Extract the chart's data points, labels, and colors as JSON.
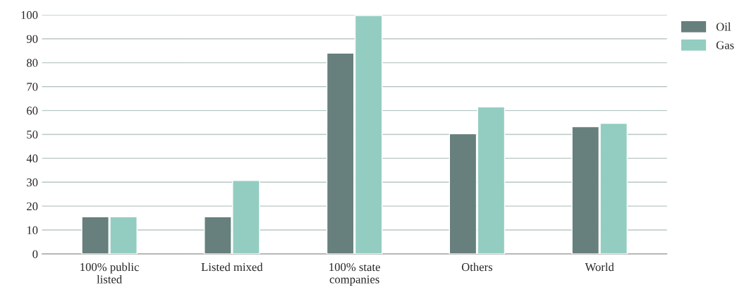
{
  "chart_data": {
    "type": "bar",
    "categories": [
      "100% public\nlisted",
      "Listed mixed",
      "100% state\ncompanies",
      "Others",
      "World"
    ],
    "series": [
      {
        "name": "Oil",
        "color": "#677f7d",
        "values": [
          15.5,
          15.5,
          84,
          50.3,
          53.2
        ]
      },
      {
        "name": "Gas",
        "color": "#93cdc1",
        "values": [
          15.5,
          30.7,
          99.7,
          61.5,
          54.6
        ]
      }
    ],
    "ylim": [
      0,
      100
    ],
    "yticks": [
      0,
      10,
      20,
      30,
      40,
      50,
      60,
      70,
      80,
      90,
      100
    ],
    "grid": "y",
    "legend": "top right"
  }
}
